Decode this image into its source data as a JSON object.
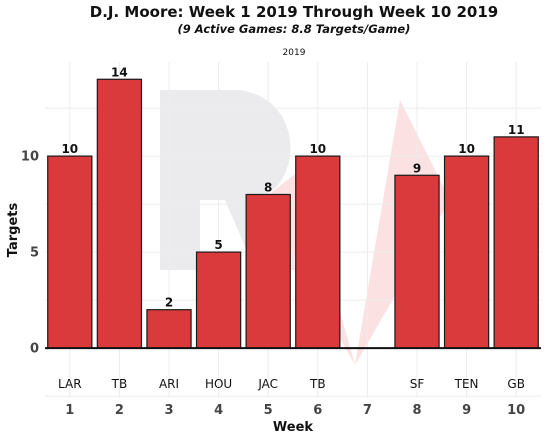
{
  "chart_data": {
    "type": "bar",
    "title": "D.J. Moore: Week 1 2019 Through Week 10 2019",
    "subtitle": "(9 Active Games: 8.8 Targets/Game)",
    "facet_label": "2019",
    "xlabel": "Week",
    "ylabel": "Targets",
    "ylim": [
      -2.6,
      14.9
    ],
    "yticks": [
      0,
      5,
      10
    ],
    "categories": [
      "1",
      "2",
      "3",
      "4",
      "5",
      "6",
      "7",
      "8",
      "9",
      "10"
    ],
    "opponents": [
      "LAR",
      "TB",
      "ARI",
      "HOU",
      "JAC",
      "TB",
      "",
      "SF",
      "TEN",
      "GB"
    ],
    "values": [
      10,
      14,
      2,
      5,
      8,
      10,
      null,
      9,
      10,
      11
    ],
    "bar_color": "#db3a3c",
    "grid": true,
    "legend": "none"
  }
}
